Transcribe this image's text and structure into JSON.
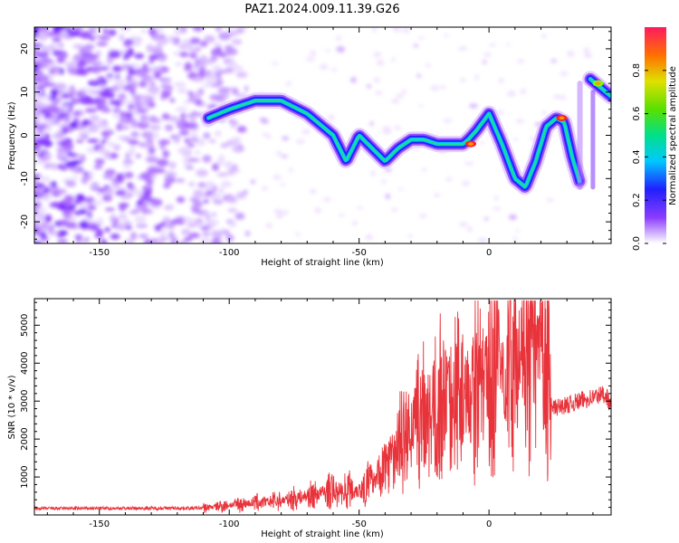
{
  "figure": {
    "title": "PAZ1.2024.009.11.39.G26"
  },
  "chart_data": [
    {
      "type": "heatmap",
      "xlabel": "Height of straight line (km)",
      "ylabel": "Frequency (Hz)",
      "xlim": [
        -175,
        47
      ],
      "ylim": [
        -25,
        25
      ],
      "xticks": [
        -150,
        -100,
        -50,
        0
      ],
      "yticks": [
        -20,
        -10,
        0,
        10,
        20
      ],
      "colorbar": {
        "label": "Normalized spectral amplitude",
        "range": [
          0,
          1
        ],
        "ticks": [
          "0.0",
          "0.2",
          "0.4",
          "0.6",
          "0.8"
        ]
      },
      "ridge": {
        "x": [
          -108,
          -100,
          -90,
          -80,
          -70,
          -60,
          -55,
          -50,
          -45,
          -40,
          -35,
          -30,
          -25,
          -20,
          -15,
          -10,
          -8,
          -5,
          0,
          5,
          10,
          14,
          18,
          22,
          26,
          29,
          32,
          35
        ],
        "y": [
          4,
          6,
          8,
          8,
          5,
          0,
          -6,
          0,
          -3,
          -6,
          -3,
          -1,
          -1,
          -2,
          -2,
          -2,
          -1,
          1,
          5,
          -2,
          -10,
          -12,
          -6,
          2,
          4,
          3,
          -5,
          -11
        ]
      },
      "hotspots": [
        {
          "x": -7,
          "y": -2,
          "level": 0.9
        },
        {
          "x": 28,
          "y": 4,
          "level": 0.95
        },
        {
          "x": 42,
          "y": 12,
          "level": 0.5
        }
      ],
      "grid": false
    },
    {
      "type": "line",
      "xlabel": "Height of straight line (km)",
      "ylabel": "SNR (10 * v/v)",
      "xlim": [
        -175,
        47
      ],
      "ylim": [
        0,
        5700
      ],
      "xticks": [
        -150,
        -100,
        -50,
        0
      ],
      "yticks": [
        1000,
        2000,
        3000,
        4000,
        5000
      ],
      "line_color": "#e8333b",
      "envelope": {
        "x": [
          -175,
          -110,
          -100,
          -90,
          -80,
          -70,
          -60,
          -55,
          -50,
          -45,
          -40,
          -35,
          -30,
          -25,
          -20,
          -15,
          -10,
          -5,
          0,
          5,
          10,
          15,
          20,
          23,
          24,
          30,
          35,
          40,
          45,
          47
        ],
        "y": [
          170,
          180,
          260,
          320,
          380,
          500,
          650,
          700,
          650,
          900,
          1300,
          1900,
          2300,
          2700,
          3000,
          3300,
          3300,
          3600,
          3800,
          3800,
          4200,
          4300,
          4300,
          4300,
          2800,
          2900,
          3000,
          3100,
          3200,
          2800
        ]
      },
      "grid": false
    }
  ]
}
